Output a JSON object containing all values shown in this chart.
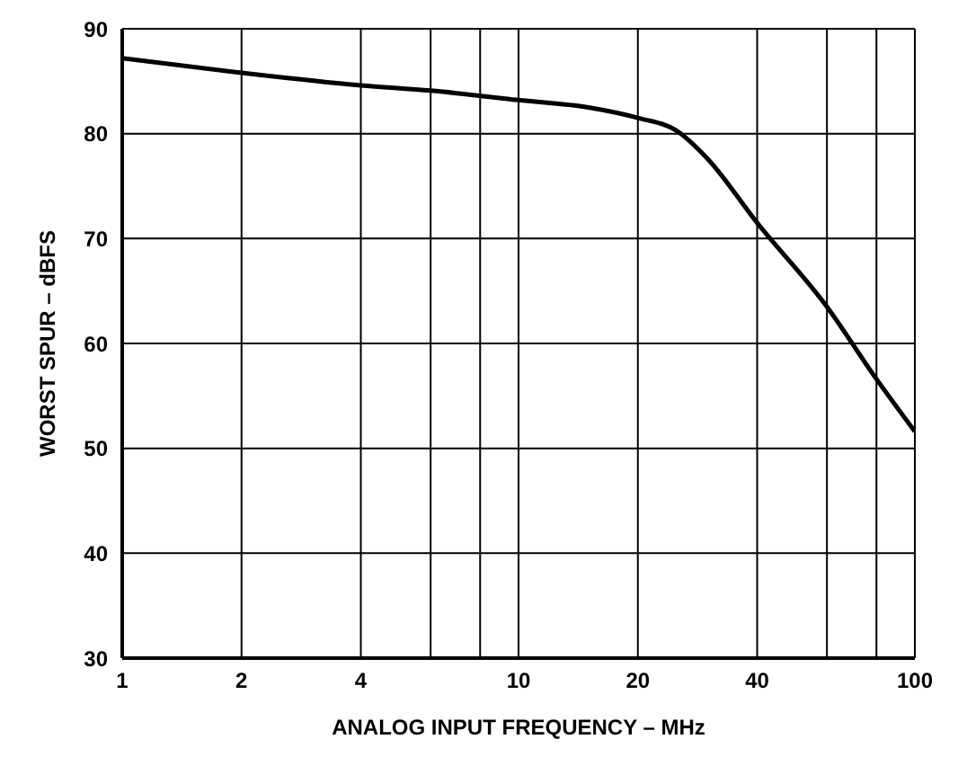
{
  "chart_data": {
    "type": "line",
    "xlabel": "ANALOG INPUT FREQUENCY – MHz",
    "ylabel": "WORST SPUR – dBFS",
    "log": "x",
    "grid": true,
    "marker": "none",
    "line_style": "solid",
    "x": [
      1,
      2,
      4,
      6,
      10,
      15,
      20,
      25,
      30,
      40,
      60,
      80,
      100
    ],
    "series": [
      {
        "color": "#000000",
        "values": [
          87.2,
          85.8,
          84.6,
          84.1,
          83.2,
          82.5,
          81.5,
          80.3,
          77.6,
          71.5,
          63.5,
          56.6,
          51.6
        ]
      }
    ],
    "xlim": [
      1,
      100
    ],
    "xticks": [
      1,
      2,
      4,
      {
        "value": 6,
        "label": null
      },
      {
        "value": 8,
        "label": null
      },
      10,
      20,
      40,
      {
        "value": 60,
        "label": null
      },
      {
        "value": 80,
        "label": null
      },
      100
    ],
    "ylim": [
      30,
      90
    ],
    "yticks": [
      30,
      40,
      50,
      60,
      70,
      80,
      90
    ]
  }
}
